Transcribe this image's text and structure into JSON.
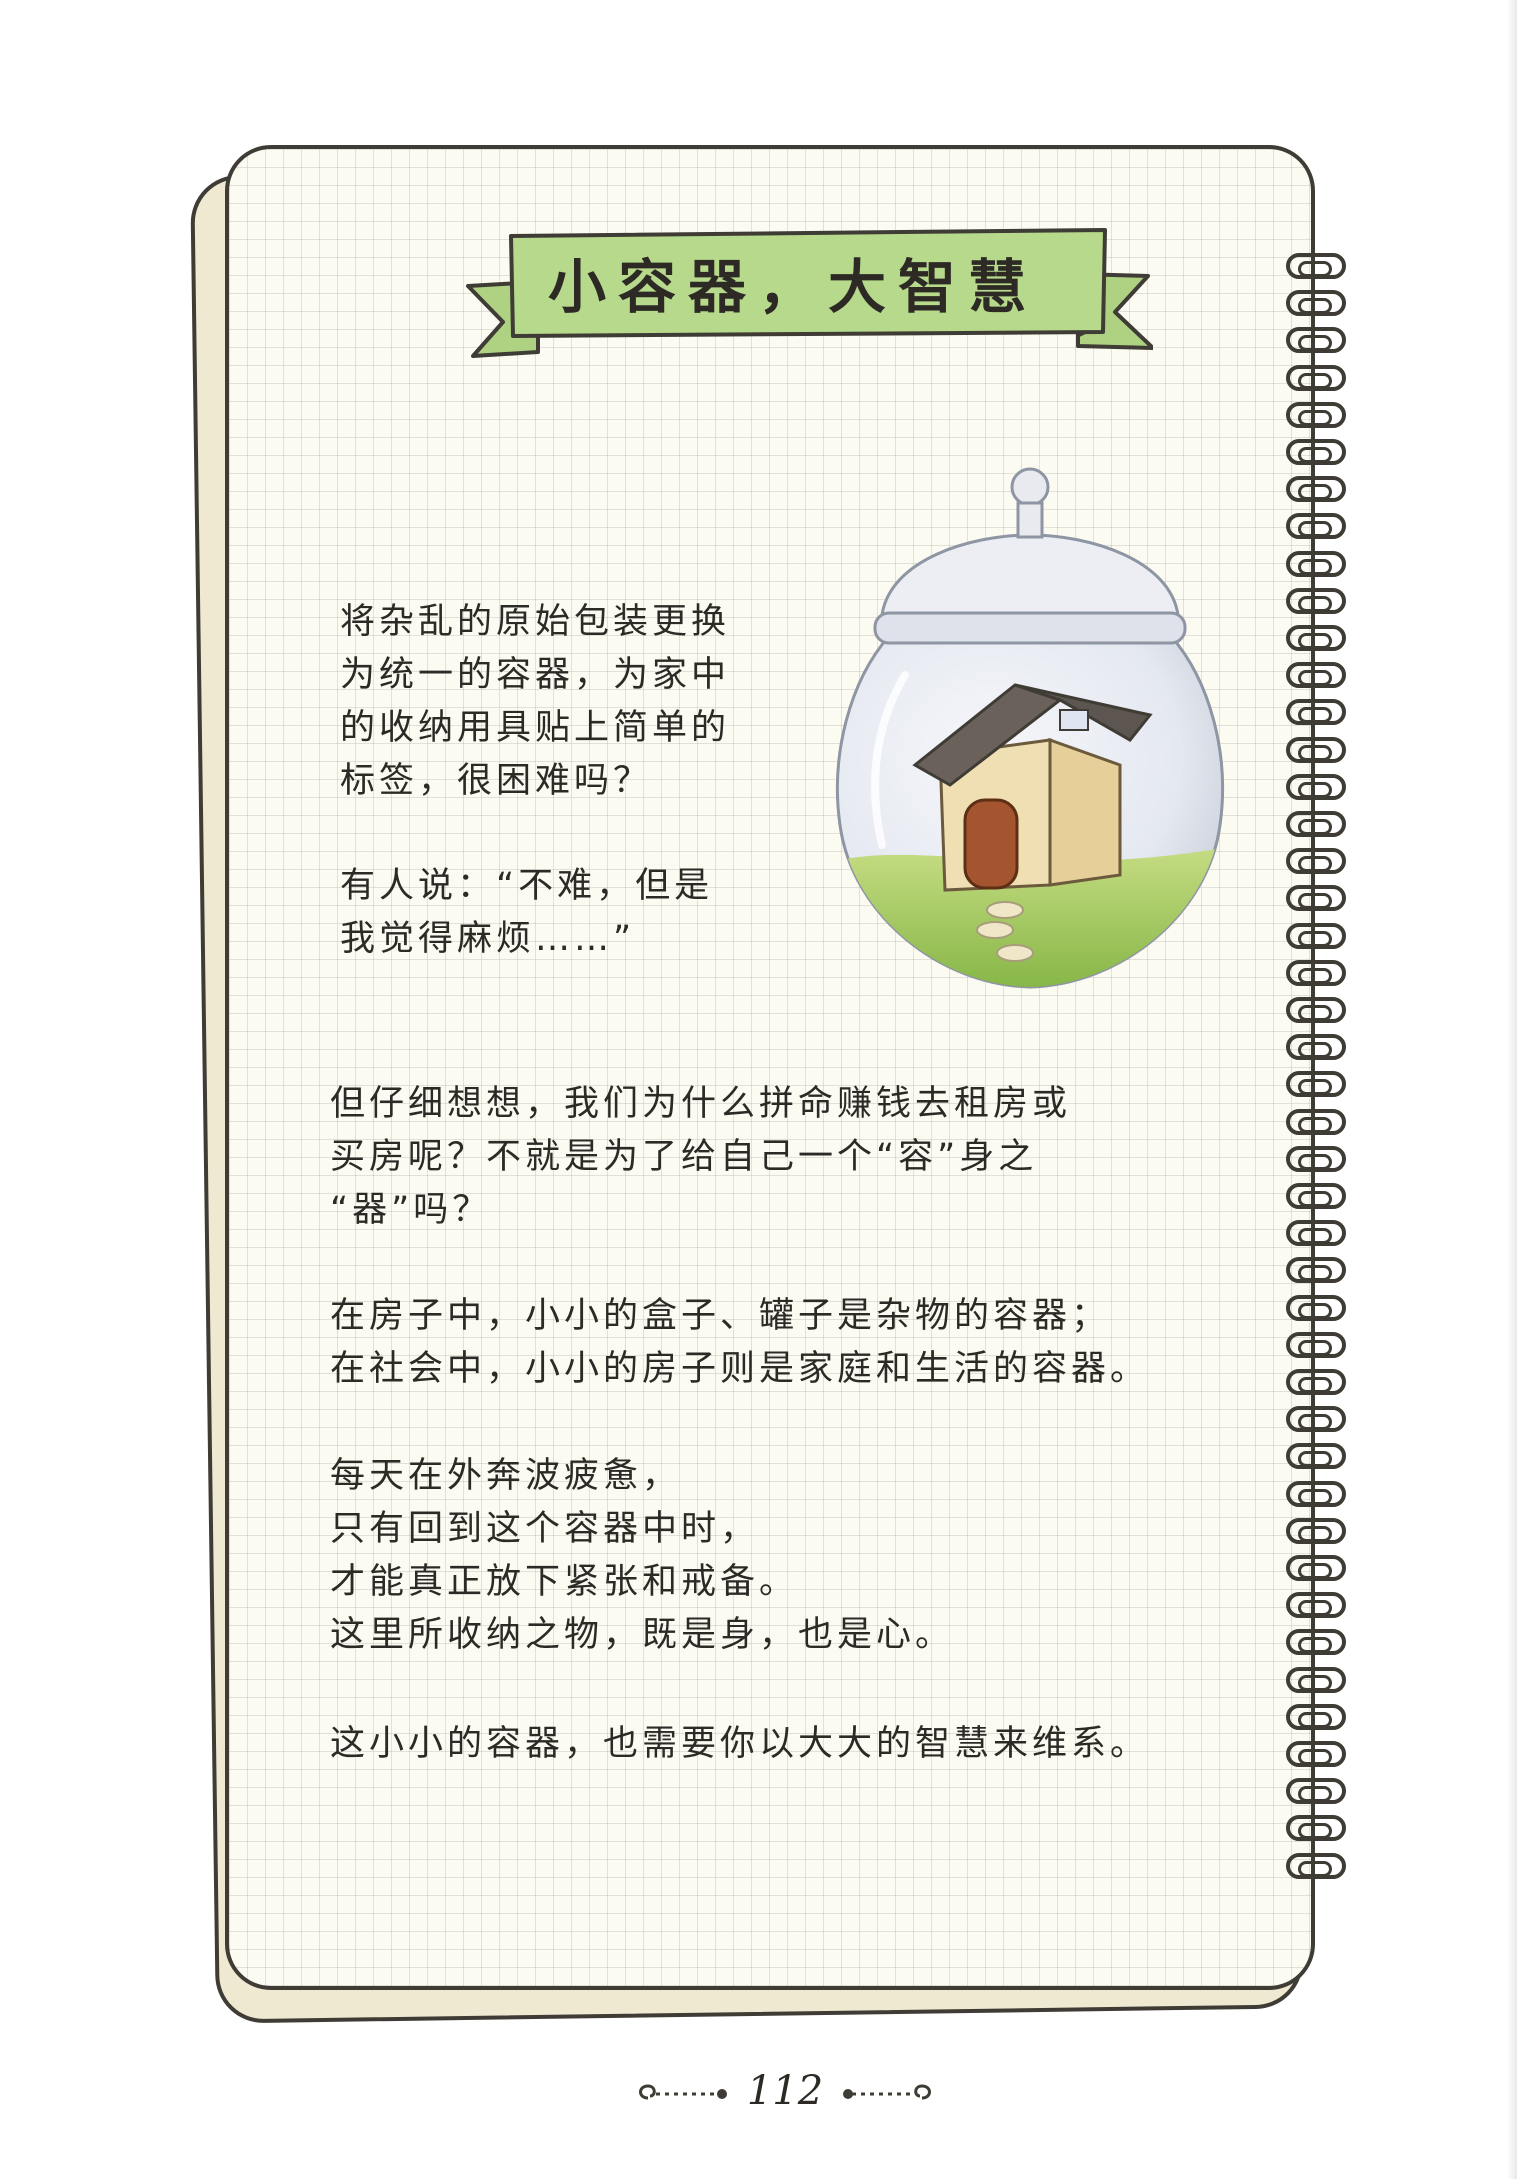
{
  "title": "小容器，大智慧",
  "intro_lines": [
    "将杂乱的原始包装更换",
    "为统一的容器，为家中",
    "的收纳用具贴上简单的",
    "标签，很困难吗？"
  ],
  "quote_lines": [
    "有人说：“不难，但是",
    "我觉得麻烦……”"
  ],
  "paragraph1_lines": [
    "但仔细想想，我们为什么拼命赚钱去租房或",
    "买房呢？不就是为了给自己一个“容”身之",
    "“器”吗？"
  ],
  "paragraph2_lines": [
    "在房子中，小小的盒子、罐子是杂物的容器；",
    "在社会中，小小的房子则是家庭和生活的容器。"
  ],
  "paragraph3_lines": [
    "每天在外奔波疲惫，",
    "只有回到这个容器中时，",
    "才能真正放下紧张和戒备。",
    "这里所收纳之物，既是身，也是心。"
  ],
  "paragraph4_lines": [
    "这小小的容器，也需要你以大大的智慧来维系。"
  ],
  "page_number": "112",
  "colors": {
    "banner_fill": "#b7d98b",
    "outline": "#3f3b35",
    "paper": "#fbfbf2",
    "grid": "#d2d2c8",
    "grass": "#8fbf4a",
    "jar_glass": "#e6eaf2"
  },
  "illustration": {
    "subject": "glass jar with a small house inside",
    "icon": "house-in-jar-icon"
  }
}
